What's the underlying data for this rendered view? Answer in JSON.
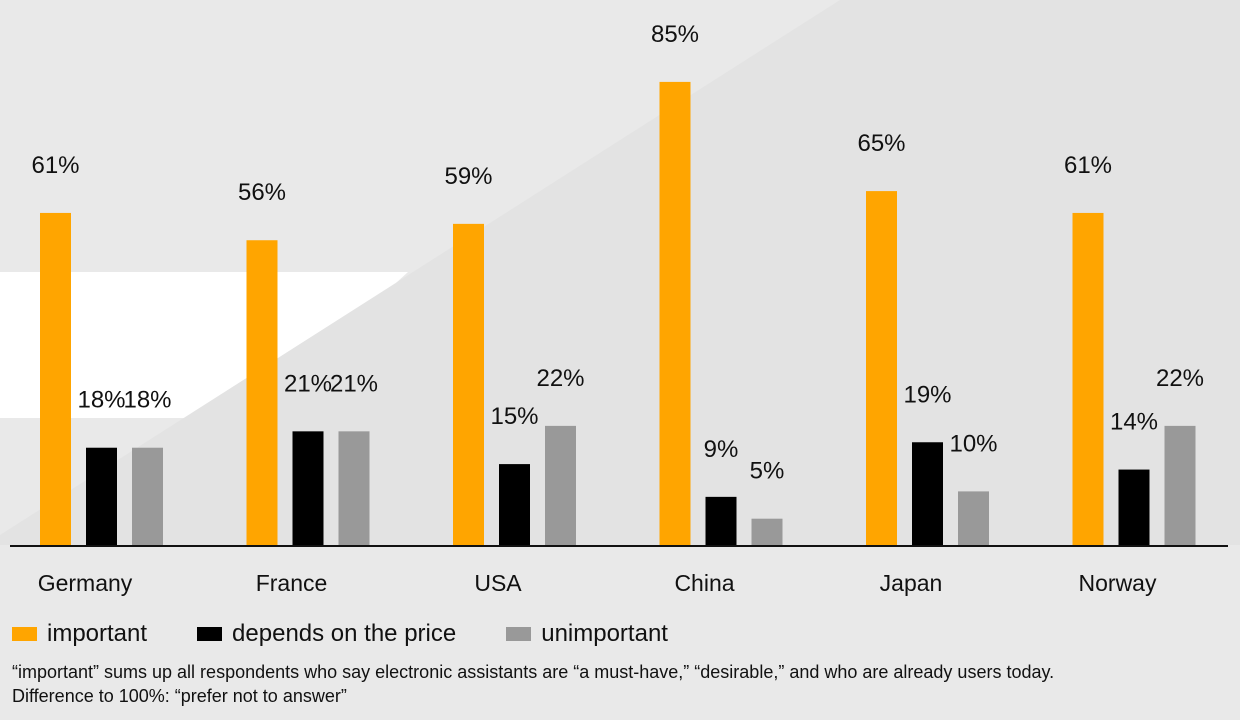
{
  "chart_data": {
    "type": "bar",
    "categories": [
      "Germany",
      "France",
      "USA",
      "China",
      "Japan",
      "Norway"
    ],
    "series": [
      {
        "name": "important",
        "color": "#ffa500",
        "values": [
          61,
          56,
          59,
          85,
          65,
          61
        ]
      },
      {
        "name": "depends on the price",
        "color": "#000000",
        "values": [
          18,
          21,
          15,
          9,
          19,
          14
        ]
      },
      {
        "name": "unimportant",
        "color": "#999999",
        "values": [
          18,
          21,
          22,
          5,
          10,
          22
        ]
      }
    ],
    "value_suffix": "%",
    "ylim": [
      0,
      100
    ],
    "grid": false,
    "legend_position": "bottom-left",
    "colors": {
      "background": "#e9e9e9",
      "axis": "#111111"
    }
  },
  "footnote": {
    "line1": "“important” sums up all respondents who say electronic assistants are “a must-have,” “desirable,” and who are already users today.",
    "line2": "Difference to 100%: “prefer not to answer”"
  }
}
